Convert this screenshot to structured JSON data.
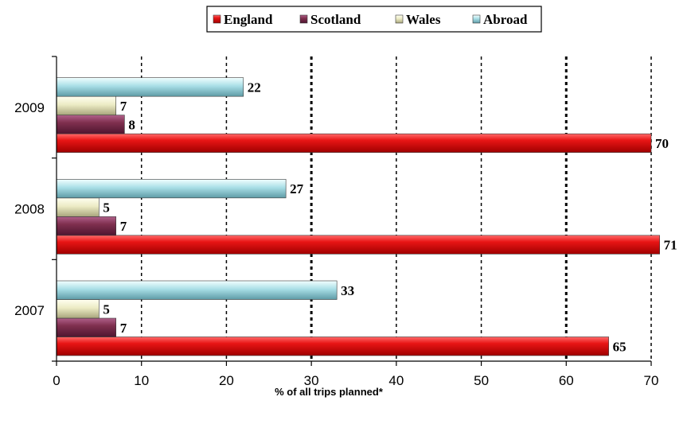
{
  "chart_data": {
    "type": "bar",
    "orientation": "horizontal",
    "categories": [
      "2009",
      "2008",
      "2007"
    ],
    "series": [
      {
        "name": "England",
        "values": [
          70,
          71,
          65
        ],
        "color": "#e01010"
      },
      {
        "name": "Scotland",
        "values": [
          8,
          7,
          7
        ],
        "color": "#80304f"
      },
      {
        "name": "Wales",
        "values": [
          7,
          5,
          5
        ],
        "color": "#e6e4b8"
      },
      {
        "name": "Abroad",
        "values": [
          22,
          27,
          33
        ],
        "color": "#a4dce4"
      }
    ],
    "xlabel": "% of all trips planned*",
    "ylabel": "",
    "xlim": [
      0,
      70
    ],
    "xticks": [
      0,
      10,
      20,
      30,
      40,
      50,
      60,
      70
    ],
    "grid": "vertical dashed",
    "legend": "top-center"
  }
}
